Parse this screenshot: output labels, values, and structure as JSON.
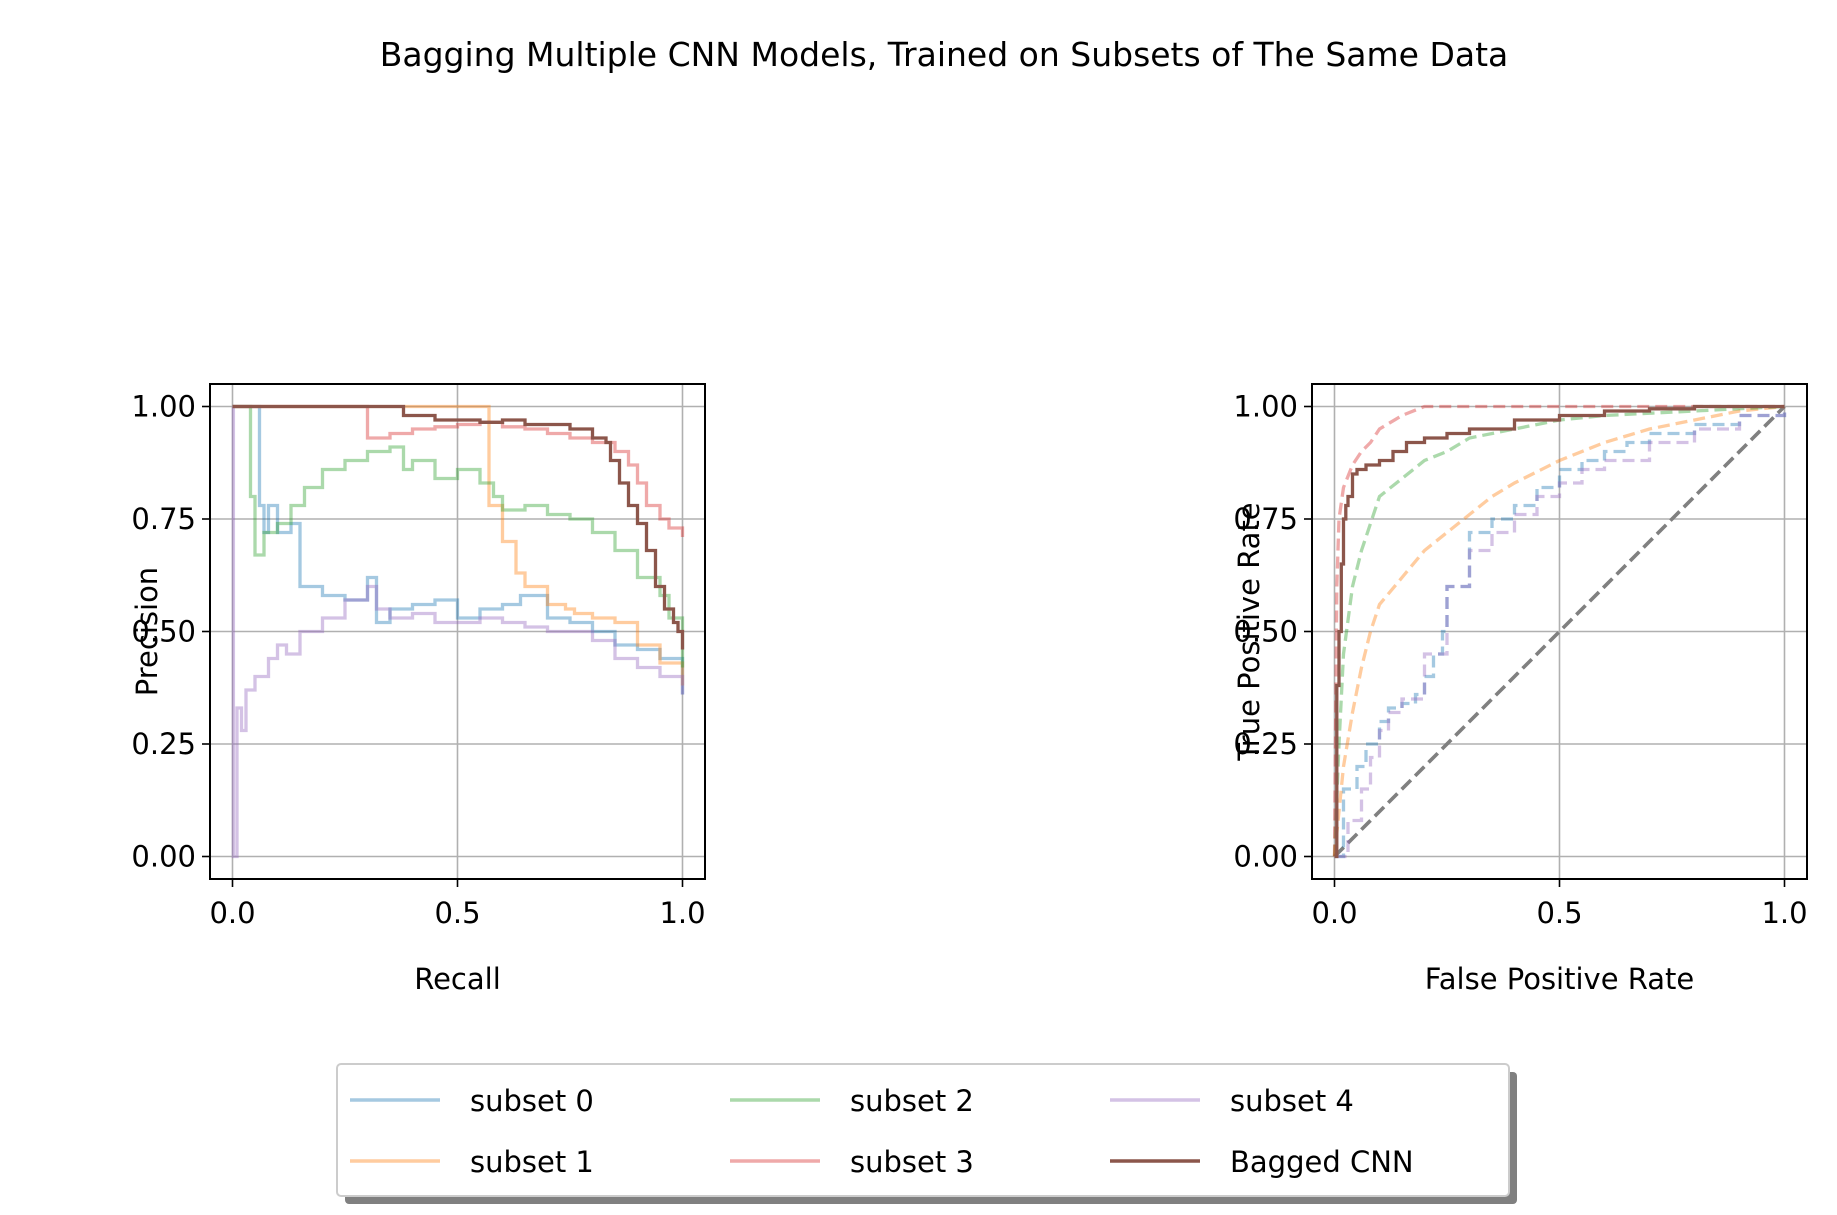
{
  "figure": {
    "title": "Bagging Multiple CNN Models, Trained on Subsets of The Same Data"
  },
  "colors": {
    "subset 0": "#1f77b4",
    "subset 1": "#ff7f0e",
    "subset 2": "#2ca02c",
    "subset 3": "#d62728",
    "subset 4": "#9467bd",
    "Bagged CNN": "#8c564b",
    "diagonal": "#808080",
    "grid": "#b0b0b0"
  },
  "legend": {
    "placement": "bottom-center",
    "columns": 3,
    "entries": [
      "subset 0",
      "subset 1",
      "subset 2",
      "subset 3",
      "subset 4",
      "Bagged CNN"
    ]
  },
  "chart_data": [
    {
      "type": "line",
      "name": "precision-recall",
      "title": "",
      "xlabel": "Recall",
      "ylabel": "Precision",
      "xlim": [
        -0.05,
        1.05
      ],
      "ylim": [
        -0.05,
        1.05
      ],
      "xticks": [
        0.0,
        0.5,
        1.0
      ],
      "xtick_labels": [
        "0.0",
        "0.5",
        "1.0"
      ],
      "yticks": [
        0.0,
        0.25,
        0.5,
        0.75,
        1.0
      ],
      "ytick_labels": [
        "0.00",
        "0.25",
        "0.50",
        "0.75",
        "1.00"
      ],
      "grid": true,
      "series": [
        {
          "name": "subset 0",
          "alpha": 0.4,
          "dash": "solid",
          "step": true,
          "x": [
            0,
            0.05,
            0.06,
            0.07,
            0.08,
            0.1,
            0.13,
            0.15,
            0.2,
            0.25,
            0.3,
            0.32,
            0.35,
            0.4,
            0.45,
            0.5,
            0.55,
            0.6,
            0.64,
            0.7,
            0.75,
            0.8,
            0.85,
            0.9,
            0.95,
            1.0
          ],
          "y": [
            1.0,
            1.0,
            0.78,
            0.72,
            0.78,
            0.72,
            0.74,
            0.6,
            0.58,
            0.57,
            0.62,
            0.52,
            0.55,
            0.56,
            0.57,
            0.53,
            0.55,
            0.56,
            0.58,
            0.53,
            0.52,
            0.5,
            0.47,
            0.46,
            0.44,
            0.36
          ]
        },
        {
          "name": "subset 1",
          "alpha": 0.4,
          "dash": "solid",
          "step": true,
          "x": [
            0,
            0.5,
            0.56,
            0.57,
            0.6,
            0.63,
            0.65,
            0.7,
            0.74,
            0.76,
            0.8,
            0.85,
            0.9,
            0.95,
            1.0
          ],
          "y": [
            1.0,
            1.0,
            1.0,
            0.78,
            0.7,
            0.63,
            0.6,
            0.56,
            0.55,
            0.54,
            0.53,
            0.52,
            0.47,
            0.43,
            0.38
          ]
        },
        {
          "name": "subset 2",
          "alpha": 0.4,
          "dash": "solid",
          "step": true,
          "x": [
            0,
            0.03,
            0.04,
            0.05,
            0.07,
            0.1,
            0.13,
            0.16,
            0.2,
            0.25,
            0.3,
            0.35,
            0.38,
            0.4,
            0.45,
            0.5,
            0.55,
            0.58,
            0.6,
            0.65,
            0.7,
            0.75,
            0.8,
            0.85,
            0.9,
            0.95,
            0.97,
            1.0
          ],
          "y": [
            1.0,
            1.0,
            0.8,
            0.67,
            0.72,
            0.74,
            0.78,
            0.82,
            0.86,
            0.88,
            0.9,
            0.91,
            0.86,
            0.88,
            0.84,
            0.86,
            0.83,
            0.8,
            0.77,
            0.78,
            0.76,
            0.75,
            0.72,
            0.68,
            0.62,
            0.58,
            0.53,
            0.42
          ]
        },
        {
          "name": "subset 3",
          "alpha": 0.4,
          "dash": "solid",
          "step": true,
          "x": [
            0,
            0.29,
            0.3,
            0.35,
            0.4,
            0.45,
            0.5,
            0.55,
            0.6,
            0.65,
            0.7,
            0.75,
            0.8,
            0.85,
            0.88,
            0.9,
            0.92,
            0.95,
            0.97,
            1.0
          ],
          "y": [
            1.0,
            1.0,
            0.93,
            0.94,
            0.95,
            0.955,
            0.96,
            0.965,
            0.955,
            0.95,
            0.94,
            0.93,
            0.92,
            0.9,
            0.87,
            0.83,
            0.78,
            0.75,
            0.73,
            0.71
          ]
        },
        {
          "name": "subset 4",
          "alpha": 0.4,
          "dash": "solid",
          "step": true,
          "x": [
            0,
            0.002,
            0.01,
            0.02,
            0.03,
            0.05,
            0.08,
            0.1,
            0.12,
            0.15,
            0.2,
            0.25,
            0.3,
            0.32,
            0.35,
            0.4,
            0.45,
            0.5,
            0.55,
            0.6,
            0.65,
            0.7,
            0.75,
            0.8,
            0.85,
            0.9,
            0.95,
            1.0
          ],
          "y": [
            1.0,
            0.0,
            0.33,
            0.28,
            0.37,
            0.4,
            0.44,
            0.47,
            0.45,
            0.5,
            0.53,
            0.57,
            0.6,
            0.55,
            0.53,
            0.54,
            0.52,
            0.52,
            0.53,
            0.52,
            0.51,
            0.5,
            0.5,
            0.48,
            0.44,
            0.42,
            0.4,
            0.36
          ]
        },
        {
          "name": "Bagged CNN",
          "alpha": 1.0,
          "dash": "solid",
          "step": true,
          "x": [
            0,
            0.37,
            0.38,
            0.45,
            0.55,
            0.6,
            0.65,
            0.7,
            0.75,
            0.8,
            0.83,
            0.84,
            0.86,
            0.88,
            0.9,
            0.92,
            0.94,
            0.96,
            0.98,
            0.99,
            1.0
          ],
          "y": [
            1.0,
            1.0,
            0.98,
            0.97,
            0.965,
            0.97,
            0.96,
            0.96,
            0.95,
            0.93,
            0.92,
            0.88,
            0.83,
            0.78,
            0.74,
            0.68,
            0.6,
            0.55,
            0.52,
            0.5,
            0.46
          ]
        }
      ]
    },
    {
      "type": "line",
      "name": "roc",
      "title": "",
      "xlabel": "False Positive Rate",
      "ylabel": "True Positive Rate",
      "xlim": [
        -0.05,
        1.05
      ],
      "ylim": [
        -0.05,
        1.05
      ],
      "xticks": [
        0.0,
        0.5,
        1.0
      ],
      "xtick_labels": [
        "0.0",
        "0.5",
        "1.0"
      ],
      "yticks": [
        0.0,
        0.25,
        0.5,
        0.75,
        1.0
      ],
      "ytick_labels": [
        "0.00",
        "0.25",
        "0.50",
        "0.75",
        "1.00"
      ],
      "grid": true,
      "diagonal": {
        "x": [
          0,
          1
        ],
        "y": [
          0,
          1
        ],
        "dash": "dashed"
      },
      "series": [
        {
          "name": "subset 0",
          "alpha": 0.4,
          "dash": "dashed",
          "step": true,
          "x": [
            0,
            0.02,
            0.05,
            0.07,
            0.1,
            0.12,
            0.15,
            0.18,
            0.2,
            0.22,
            0.24,
            0.25,
            0.3,
            0.35,
            0.4,
            0.45,
            0.5,
            0.55,
            0.6,
            0.65,
            0.7,
            0.8,
            0.9,
            1.0
          ],
          "y": [
            0,
            0.15,
            0.2,
            0.25,
            0.3,
            0.33,
            0.34,
            0.36,
            0.4,
            0.45,
            0.5,
            0.6,
            0.72,
            0.75,
            0.78,
            0.82,
            0.86,
            0.88,
            0.9,
            0.92,
            0.94,
            0.96,
            0.98,
            1.0
          ]
        },
        {
          "name": "subset 1",
          "alpha": 0.4,
          "dash": "dashed",
          "step": false,
          "x": [
            0,
            0.02,
            0.04,
            0.06,
            0.08,
            0.1,
            0.15,
            0.2,
            0.25,
            0.3,
            0.35,
            0.4,
            0.5,
            0.6,
            0.7,
            0.8,
            0.9,
            1.0
          ],
          "y": [
            0,
            0.2,
            0.32,
            0.42,
            0.5,
            0.56,
            0.62,
            0.68,
            0.72,
            0.76,
            0.8,
            0.83,
            0.88,
            0.92,
            0.95,
            0.97,
            0.99,
            1.0
          ]
        },
        {
          "name": "subset 2",
          "alpha": 0.4,
          "dash": "dashed",
          "step": false,
          "x": [
            0,
            0.01,
            0.02,
            0.04,
            0.06,
            0.08,
            0.1,
            0.15,
            0.2,
            0.25,
            0.3,
            0.4,
            0.5,
            0.6,
            0.8,
            1.0
          ],
          "y": [
            0,
            0.25,
            0.45,
            0.6,
            0.68,
            0.74,
            0.8,
            0.84,
            0.88,
            0.9,
            0.93,
            0.95,
            0.97,
            0.98,
            0.99,
            1.0
          ]
        },
        {
          "name": "subset 3",
          "alpha": 0.4,
          "dash": "dashed",
          "step": false,
          "x": [
            0,
            0.005,
            0.01,
            0.02,
            0.04,
            0.06,
            0.08,
            0.1,
            0.15,
            0.2,
            0.3,
            0.5,
            1.0
          ],
          "y": [
            0,
            0.6,
            0.75,
            0.82,
            0.87,
            0.9,
            0.92,
            0.95,
            0.98,
            1.0,
            1.0,
            1.0,
            1.0
          ]
        },
        {
          "name": "subset 4",
          "alpha": 0.4,
          "dash": "dashed",
          "step": true,
          "x": [
            0,
            0.03,
            0.06,
            0.08,
            0.1,
            0.12,
            0.15,
            0.2,
            0.25,
            0.3,
            0.35,
            0.4,
            0.45,
            0.5,
            0.55,
            0.6,
            0.7,
            0.8,
            0.9,
            1.0
          ],
          "y": [
            0,
            0.08,
            0.15,
            0.22,
            0.28,
            0.32,
            0.35,
            0.45,
            0.6,
            0.68,
            0.72,
            0.76,
            0.8,
            0.83,
            0.86,
            0.88,
            0.92,
            0.95,
            0.98,
            1.0
          ]
        },
        {
          "name": "Bagged CNN",
          "alpha": 1.0,
          "dash": "solid",
          "step": true,
          "x": [
            0,
            0.005,
            0.01,
            0.015,
            0.02,
            0.025,
            0.03,
            0.04,
            0.05,
            0.07,
            0.1,
            0.13,
            0.16,
            0.2,
            0.25,
            0.3,
            0.4,
            0.5,
            0.6,
            0.7,
            0.8,
            0.9,
            1.0
          ],
          "y": [
            0,
            0.38,
            0.5,
            0.65,
            0.75,
            0.78,
            0.8,
            0.85,
            0.86,
            0.87,
            0.88,
            0.9,
            0.92,
            0.93,
            0.94,
            0.95,
            0.97,
            0.98,
            0.99,
            0.995,
            1.0,
            1.0,
            1.0
          ]
        }
      ]
    }
  ]
}
